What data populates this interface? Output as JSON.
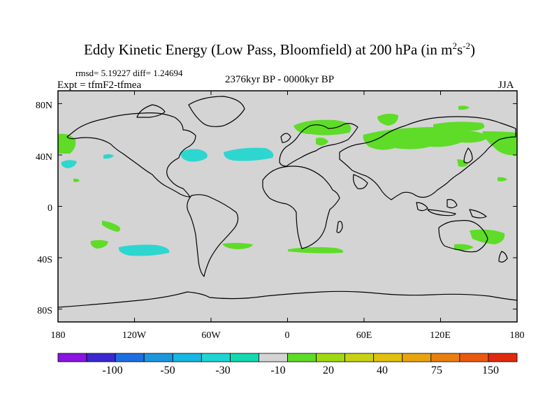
{
  "title": {
    "main": "Eddy Kinetic Energy (Low Pass, Bloomfield) at 200 hPa (in m",
    "sup1": "2",
    "mid": "s",
    "sup2": "-2",
    "end": ")"
  },
  "stats": "rmsd= 5.19227 diff= 1.24694",
  "expt": "Expt = tfmF2-tfmea",
  "period": "2376kyr BP - 0000kyr BP",
  "season": "JJA",
  "map": {
    "background": "#d4d4d4",
    "lon_range": [
      -180,
      180
    ],
    "lat_range": [
      -90,
      90
    ],
    "lat_ticks": [
      "80N",
      "40N",
      "0",
      "40S",
      "80S"
    ],
    "lon_ticks": [
      "180",
      "120W",
      "60W",
      "0",
      "60E",
      "120E",
      "180"
    ]
  },
  "colorbar": {
    "colors": [
      "#8a14e0",
      "#3c28d0",
      "#1e6ee0",
      "#1e96dc",
      "#18b6e2",
      "#20d4d4",
      "#14d8b0",
      "#d4d4d4",
      "#5edc28",
      "#a0d814",
      "#c8d214",
      "#e0c010",
      "#e8a410",
      "#e88010",
      "#e85a10",
      "#e02a10"
    ],
    "labels": [
      "-100",
      "-50",
      "-30",
      "-10",
      "20",
      "40",
      "75",
      "150"
    ]
  },
  "legend_colors": {
    "positive": "#5edc28",
    "negative": "#2ed6d0"
  }
}
